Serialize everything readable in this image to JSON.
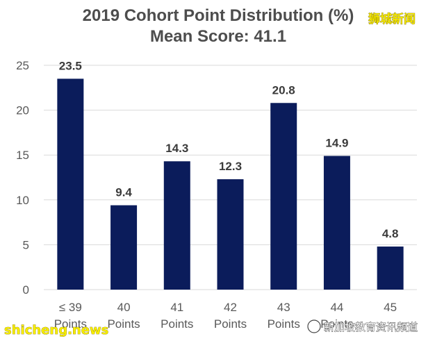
{
  "chart_data": {
    "type": "bar",
    "title": "2019 Cohort Point Distribution (%)",
    "subtitle": "Mean Score: 41.1",
    "categories": [
      "≤ 39 Points",
      "40 Points",
      "41 Points",
      "42 Points",
      "43 Points",
      "44 Points",
      "45"
    ],
    "category_lines": [
      [
        "≤ 39",
        "Points"
      ],
      [
        "40",
        "Points"
      ],
      [
        "41",
        "Points"
      ],
      [
        "42",
        "Points"
      ],
      [
        "43",
        "Points"
      ],
      [
        "44",
        "Points"
      ],
      [
        "45",
        ""
      ]
    ],
    "values": [
      23.5,
      9.4,
      14.3,
      12.3,
      20.8,
      14.9,
      4.8
    ],
    "value_labels": [
      "23.5",
      "9.4",
      "14.3",
      "12.3",
      "20.8",
      "14.9",
      "4.8"
    ],
    "yticks": [
      "0",
      "5",
      "10",
      "15",
      "20",
      "25"
    ],
    "ylim": [
      0,
      25
    ],
    "grid": true,
    "legend": "none",
    "bar_color": "#0b1c5b",
    "grid_color": "#d9d9d9"
  },
  "watermarks": {
    "top_right": "狮城新闻",
    "bottom_left": "shicheng.news",
    "bottom_right": "新加坡教育资讯频道"
  }
}
